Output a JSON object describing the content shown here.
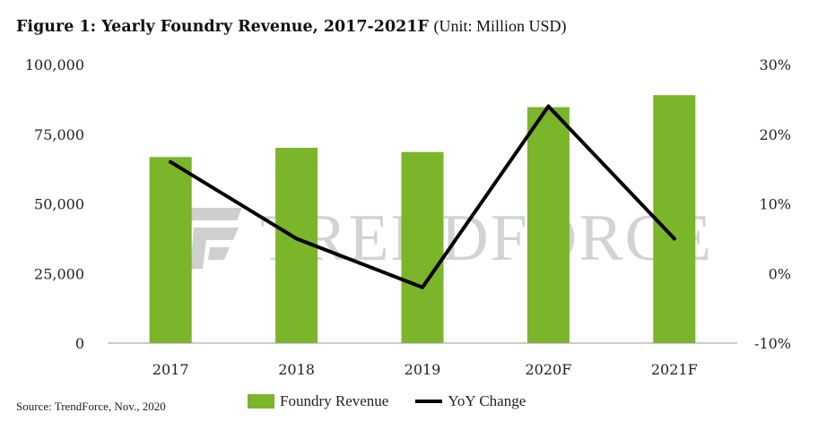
{
  "title": {
    "bold": "Figure 1: Yearly Foundry Revenue, 2017-2021F",
    "unit": "(Unit: Million USD)"
  },
  "source": "Source: TrendForce, Nov., 2020",
  "watermark": {
    "text": "TRENDFORCE",
    "icon": "trendforce-logo-icon"
  },
  "colors": {
    "bar": "#7ab52a",
    "line": "#000000",
    "axis": "#999999"
  },
  "chart_data": {
    "type": "bar",
    "title": "Figure 1: Yearly Foundry Revenue, 2017-2021F (Unit: Million USD)",
    "categories": [
      "2017",
      "2018",
      "2019",
      "2020F",
      "2021F"
    ],
    "series": [
      {
        "name": "Foundry Revenue",
        "type": "bar",
        "axis": "left",
        "values": [
          66800,
          70100,
          68600,
          84700,
          89000
        ]
      },
      {
        "name": "YoY Change",
        "type": "line",
        "axis": "right",
        "values": [
          16,
          5,
          -2,
          24,
          5
        ]
      }
    ],
    "left_axis": {
      "min": 0,
      "max": 100000,
      "ticks": [
        0,
        25000,
        50000,
        75000,
        100000
      ],
      "tick_labels": [
        "0",
        "25,000",
        "50,000",
        "75,000",
        "100,000"
      ]
    },
    "right_axis": {
      "min": -10,
      "max": 30,
      "ticks": [
        -10,
        0,
        10,
        20,
        30
      ],
      "tick_labels": [
        "-10%",
        "0%",
        "10%",
        "20%",
        "30%"
      ]
    },
    "grid": false,
    "legend": "bottom"
  }
}
